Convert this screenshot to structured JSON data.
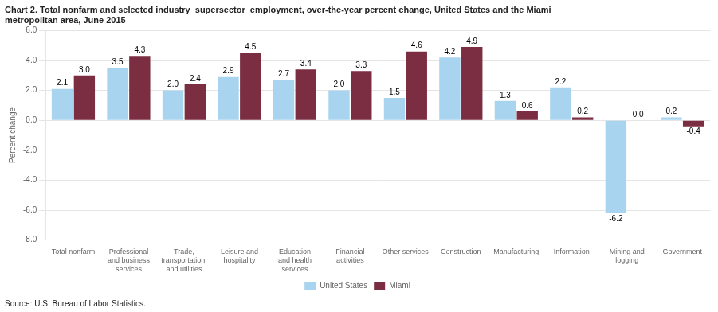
{
  "chart_data": {
    "type": "bar",
    "title": [
      "Chart 2. Total nonfarm and selected industry  supersector  employment, over-the-year percent change, United States and the Miami",
      "metropolitan area, June 2015"
    ],
    "ylabel": "Percent change",
    "annotations": [
      "Source: U.S. Bureau of Labor Statistics."
    ],
    "categories": [
      "Total nonfarm",
      "Professional\nand business\nservices",
      "Trade,\ntransportation,\nand utilities",
      "Leisure and\nhospitality",
      "Education\nand health\nservices",
      "Financial\nactivities",
      "Other services",
      "Construction",
      "Manufacturing",
      "Information",
      "Mining and\nlogging",
      "Government"
    ],
    "series": [
      {
        "name": "United States",
        "color": "#A8D4F0",
        "values": [
          2.1,
          3.5,
          2.0,
          2.9,
          2.7,
          2.0,
          1.5,
          4.2,
          1.3,
          2.2,
          -6.2,
          0.2
        ],
        "value_labels": [
          "2.1",
          "3.5",
          "2.0",
          "2.9",
          "2.7",
          "2.0",
          "1.5",
          "4.2",
          "1.3",
          "2.2",
          "-6.2",
          "0.2"
        ]
      },
      {
        "name": "Miami",
        "color": "#7B2D42",
        "values": [
          3.0,
          4.3,
          2.4,
          4.5,
          3.4,
          3.3,
          4.6,
          4.9,
          0.6,
          0.2,
          0.0,
          -0.4
        ],
        "value_labels": [
          "3.0",
          "4.3",
          "2.4",
          "4.5",
          "3.4",
          "3.3",
          "4.6",
          "4.9",
          "0.6",
          "0.2",
          "0.0",
          "-0.4"
        ]
      }
    ],
    "ylim": [
      -8.0,
      6.0
    ],
    "yticks": [
      {
        "value": -8.0,
        "label": "-8.0"
      },
      {
        "value": -6.0,
        "label": "-6.0"
      },
      {
        "value": -4.0,
        "label": "-4.0"
      },
      {
        "value": -2.0,
        "label": "-2.0"
      },
      {
        "value": 0.0,
        "label": "0.0"
      },
      {
        "value": 2.0,
        "label": "2.0"
      },
      {
        "value": 4.0,
        "label": "4.0"
      },
      {
        "value": 6.0,
        "label": "6.0"
      }
    ],
    "grid": true,
    "legend": "bottom",
    "data_labels": true
  }
}
